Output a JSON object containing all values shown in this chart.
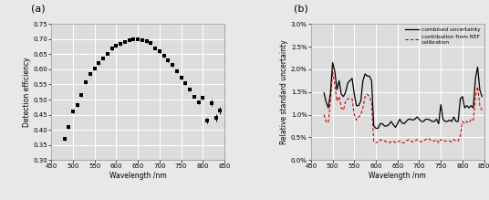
{
  "panel_a": {
    "label": "(a)",
    "xlabel": "Wavelength /nm",
    "ylabel": "Detection efficiency",
    "xlim": [
      450,
      850
    ],
    "ylim": [
      0.3,
      0.75
    ],
    "yticks": [
      0.3,
      0.35,
      0.4,
      0.45,
      0.5,
      0.55,
      0.6,
      0.65,
      0.7,
      0.75
    ],
    "xticks": [
      450,
      500,
      550,
      600,
      650,
      700,
      750,
      800,
      850
    ],
    "wavelengths": [
      480,
      490,
      500,
      510,
      520,
      530,
      540,
      550,
      560,
      570,
      580,
      590,
      600,
      610,
      620,
      630,
      640,
      650,
      660,
      670,
      680,
      690,
      700,
      710,
      720,
      730,
      740,
      750,
      760,
      770,
      780,
      790,
      800,
      810,
      820,
      830,
      840
    ],
    "efficiency": [
      0.371,
      0.409,
      0.46,
      0.482,
      0.514,
      0.556,
      0.584,
      0.604,
      0.62,
      0.637,
      0.652,
      0.668,
      0.678,
      0.683,
      0.691,
      0.697,
      0.7,
      0.7,
      0.697,
      0.692,
      0.686,
      0.67,
      0.66,
      0.645,
      0.63,
      0.615,
      0.593,
      0.572,
      0.554,
      0.534,
      0.51,
      0.49,
      0.506,
      0.43,
      0.489,
      0.44,
      0.465
    ],
    "yerr": [
      0.006,
      0.005,
      0.005,
      0.005,
      0.005,
      0.005,
      0.005,
      0.005,
      0.005,
      0.005,
      0.005,
      0.005,
      0.005,
      0.005,
      0.005,
      0.005,
      0.005,
      0.005,
      0.005,
      0.005,
      0.005,
      0.005,
      0.005,
      0.005,
      0.005,
      0.005,
      0.005,
      0.005,
      0.005,
      0.005,
      0.005,
      0.005,
      0.007,
      0.01,
      0.01,
      0.012,
      0.012
    ]
  },
  "panel_b": {
    "label": "(b)",
    "xlabel": "Wavelength /nm",
    "ylabel": "Relative standard uncertainty",
    "xlim": [
      450,
      850
    ],
    "ylim": [
      0.0,
      0.03
    ],
    "ytick_vals": [
      0.0,
      0.005,
      0.01,
      0.015,
      0.02,
      0.025,
      0.03
    ],
    "ytick_labels": [
      "0.0%",
      "0.5%",
      "1.0%",
      "1.5%",
      "2.0%",
      "2.5%",
      "3.0%"
    ],
    "xticks": [
      450,
      500,
      550,
      600,
      650,
      700,
      750,
      800,
      850
    ],
    "combined_wl": [
      480,
      485,
      490,
      495,
      500,
      505,
      510,
      515,
      520,
      525,
      530,
      535,
      540,
      545,
      550,
      555,
      560,
      565,
      570,
      575,
      580,
      585,
      590,
      595,
      600,
      605,
      610,
      615,
      620,
      625,
      630,
      635,
      640,
      645,
      650,
      655,
      660,
      665,
      670,
      675,
      680,
      685,
      690,
      695,
      700,
      705,
      710,
      715,
      720,
      725,
      730,
      735,
      740,
      745,
      750,
      755,
      760,
      765,
      770,
      775,
      780,
      785,
      790,
      795,
      800,
      805,
      810,
      815,
      820,
      825,
      830,
      835,
      840,
      845
    ],
    "combined_unc": [
      0.0148,
      0.0128,
      0.0115,
      0.0148,
      0.0215,
      0.0195,
      0.0155,
      0.0175,
      0.0145,
      0.014,
      0.015,
      0.017,
      0.0175,
      0.018,
      0.0145,
      0.012,
      0.012,
      0.013,
      0.0175,
      0.019,
      0.0185,
      0.0185,
      0.0175,
      0.0075,
      0.007,
      0.007,
      0.008,
      0.008,
      0.0075,
      0.0075,
      0.0078,
      0.0085,
      0.0078,
      0.0072,
      0.008,
      0.009,
      0.0082,
      0.008,
      0.0085,
      0.009,
      0.009,
      0.0088,
      0.009,
      0.0095,
      0.009,
      0.0085,
      0.0085,
      0.009,
      0.009,
      0.0088,
      0.0085,
      0.0085,
      0.009,
      0.008,
      0.0122,
      0.009,
      0.0085,
      0.0085,
      0.0088,
      0.0085,
      0.0095,
      0.0085,
      0.0085,
      0.0135,
      0.014,
      0.0115,
      0.012,
      0.0115,
      0.012,
      0.0115,
      0.018,
      0.0205,
      0.0155,
      0.014
    ],
    "ref_wl": [
      480,
      485,
      490,
      495,
      500,
      505,
      510,
      515,
      520,
      525,
      530,
      535,
      540,
      545,
      550,
      555,
      560,
      565,
      570,
      575,
      580,
      585,
      590,
      595,
      600,
      605,
      610,
      615,
      620,
      625,
      630,
      635,
      640,
      645,
      650,
      655,
      660,
      665,
      670,
      675,
      680,
      685,
      690,
      695,
      700,
      705,
      710,
      715,
      720,
      725,
      730,
      735,
      740,
      745,
      750,
      755,
      760,
      765,
      770,
      775,
      780,
      785,
      790,
      795,
      800,
      805,
      810,
      815,
      820,
      825,
      830,
      835,
      840,
      845
    ],
    "ref_unc": [
      0.01,
      0.0085,
      0.0082,
      0.013,
      0.0195,
      0.0165,
      0.013,
      0.014,
      0.0115,
      0.011,
      0.013,
      0.0135,
      0.0135,
      0.0135,
      0.01,
      0.0088,
      0.0095,
      0.01,
      0.0115,
      0.014,
      0.0145,
      0.014,
      0.0125,
      0.0042,
      0.0038,
      0.004,
      0.0045,
      0.0042,
      0.0042,
      0.004,
      0.0038,
      0.004,
      0.0042,
      0.0038,
      0.004,
      0.0042,
      0.0038,
      0.0038,
      0.0042,
      0.0045,
      0.0042,
      0.004,
      0.0042,
      0.0045,
      0.0042,
      0.004,
      0.0042,
      0.0045,
      0.0048,
      0.0045,
      0.0042,
      0.0042,
      0.0045,
      0.0038,
      0.0045,
      0.0042,
      0.0042,
      0.0042,
      0.0042,
      0.004,
      0.0045,
      0.0042,
      0.0042,
      0.0052,
      0.0085,
      0.008,
      0.0085,
      0.0082,
      0.009,
      0.0088,
      0.014,
      0.0162,
      0.012,
      0.011
    ],
    "line_color_combined": "#000000",
    "line_color_ref": "#cc0000"
  },
  "fig_bg_color": "#e8e8e8",
  "plot_bg_color": "#dcdcdc",
  "grid_color": "#ffffff"
}
